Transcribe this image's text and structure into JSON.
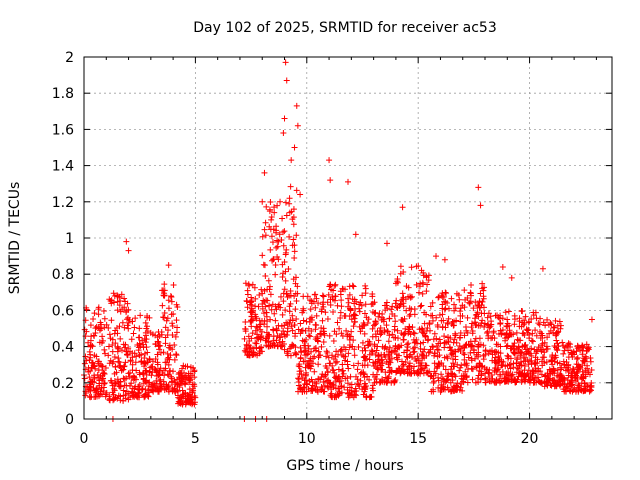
{
  "chart_data": {
    "type": "scatter",
    "title": "Day 102 of 2025, SRMTID for receiver ac53",
    "xlabel": "GPS time / hours",
    "ylabel": "SRMTID / TECUs",
    "xlim": [
      0,
      23.7
    ],
    "ylim": [
      0,
      2
    ],
    "x_ticks": [
      0,
      5,
      10,
      15,
      20
    ],
    "x_tick_labels": [
      "0",
      "5",
      "10",
      "15",
      "20"
    ],
    "y_ticks": [
      0,
      0.2,
      0.4,
      0.6,
      0.8,
      1,
      1.2,
      1.4,
      1.6,
      1.8,
      2
    ],
    "y_tick_labels": [
      "0",
      "0.2",
      "0.4",
      "0.6",
      "0.8",
      "1",
      "1.2",
      "1.4",
      "1.6",
      "1.8",
      "2"
    ],
    "grid": true,
    "marker": "+",
    "series": [
      {
        "name": "SRMTID",
        "color": "#ff0000",
        "segments": [
          {
            "x_start": 0.0,
            "x_end": 1.0,
            "typical_min": 0.12,
            "typical_max": 0.62
          },
          {
            "x_start": 1.0,
            "x_end": 2.0,
            "typical_min": 0.1,
            "typical_max": 0.7
          },
          {
            "x_start": 2.0,
            "x_end": 3.0,
            "typical_min": 0.12,
            "typical_max": 0.58
          },
          {
            "x_start": 3.0,
            "x_end": 3.5,
            "typical_min": 0.15,
            "typical_max": 0.5
          },
          {
            "x_start": 3.5,
            "x_end": 4.2,
            "typical_min": 0.15,
            "typical_max": 0.75
          },
          {
            "x_start": 4.2,
            "x_end": 5.0,
            "typical_min": 0.08,
            "typical_max": 0.3
          },
          {
            "x_start": 7.2,
            "x_end": 8.0,
            "typical_min": 0.35,
            "typical_max": 0.75
          },
          {
            "x_start": 8.0,
            "x_end": 9.0,
            "typical_min": 0.4,
            "typical_max": 1.2
          },
          {
            "x_start": 9.0,
            "x_end": 9.6,
            "typical_min": 0.35,
            "typical_max": 1.3
          },
          {
            "x_start": 9.6,
            "x_end": 11.0,
            "typical_min": 0.15,
            "typical_max": 0.7
          },
          {
            "x_start": 11.0,
            "x_end": 13.0,
            "typical_min": 0.12,
            "typical_max": 0.75
          },
          {
            "x_start": 13.0,
            "x_end": 14.0,
            "typical_min": 0.2,
            "typical_max": 0.65
          },
          {
            "x_start": 14.0,
            "x_end": 15.5,
            "typical_min": 0.25,
            "typical_max": 0.85
          },
          {
            "x_start": 15.5,
            "x_end": 17.0,
            "typical_min": 0.15,
            "typical_max": 0.7
          },
          {
            "x_start": 17.0,
            "x_end": 18.0,
            "typical_min": 0.2,
            "typical_max": 0.75
          },
          {
            "x_start": 18.0,
            "x_end": 20.5,
            "typical_min": 0.2,
            "typical_max": 0.6
          },
          {
            "x_start": 20.5,
            "x_end": 21.5,
            "typical_min": 0.18,
            "typical_max": 0.55
          },
          {
            "x_start": 21.5,
            "x_end": 22.8,
            "typical_min": 0.15,
            "typical_max": 0.42
          }
        ],
        "outliers": [
          {
            "x": 1.9,
            "y": 0.98
          },
          {
            "x": 2.0,
            "y": 0.93
          },
          {
            "x": 3.8,
            "y": 0.85
          },
          {
            "x": 8.0,
            "y": 1.2
          },
          {
            "x": 8.1,
            "y": 1.36
          },
          {
            "x": 8.4,
            "y": 1.1
          },
          {
            "x": 8.8,
            "y": 1.2
          },
          {
            "x": 8.95,
            "y": 1.58
          },
          {
            "x": 9.0,
            "y": 1.66
          },
          {
            "x": 9.05,
            "y": 1.97
          },
          {
            "x": 9.1,
            "y": 1.87
          },
          {
            "x": 9.3,
            "y": 1.43
          },
          {
            "x": 9.45,
            "y": 1.5
          },
          {
            "x": 9.55,
            "y": 1.73
          },
          {
            "x": 9.6,
            "y": 1.62
          },
          {
            "x": 9.7,
            "y": 1.24
          },
          {
            "x": 11.0,
            "y": 1.43
          },
          {
            "x": 11.05,
            "y": 1.32
          },
          {
            "x": 11.85,
            "y": 1.31
          },
          {
            "x": 14.3,
            "y": 1.17
          },
          {
            "x": 17.7,
            "y": 1.28
          },
          {
            "x": 17.8,
            "y": 1.18
          },
          {
            "x": 20.6,
            "y": 0.83
          },
          {
            "x": 18.8,
            "y": 0.84
          },
          {
            "x": 19.2,
            "y": 0.78
          },
          {
            "x": 13.6,
            "y": 0.97
          },
          {
            "x": 12.2,
            "y": 1.02
          },
          {
            "x": 16.2,
            "y": 0.88
          },
          {
            "x": 15.8,
            "y": 0.9
          },
          {
            "x": 22.8,
            "y": 0.55
          }
        ],
        "zero_points": [
          1.3,
          7.2,
          7.7,
          8.2
        ]
      }
    ]
  }
}
